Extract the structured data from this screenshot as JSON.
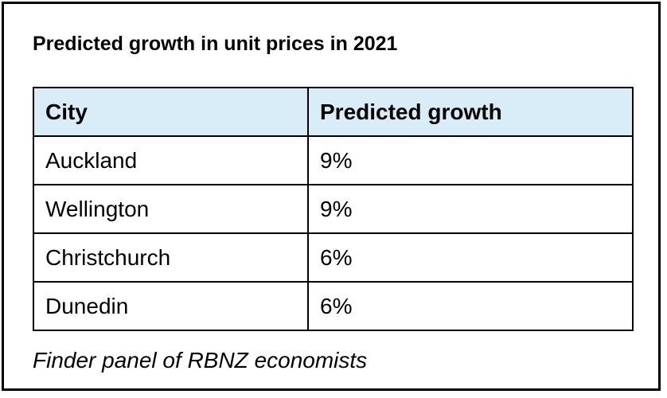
{
  "title": "Predicted growth in unit prices in 2021",
  "table": {
    "headers": [
      "City",
      "Predicted growth"
    ],
    "rows": [
      [
        "Auckland",
        "9%"
      ],
      [
        "Wellington",
        "9%"
      ],
      [
        "Christchurch",
        "6%"
      ],
      [
        "Dunedin",
        "6%"
      ]
    ]
  },
  "source": "Finder panel of RBNZ economists",
  "colors": {
    "header_background": "#d8edf7",
    "border": "#000000"
  }
}
